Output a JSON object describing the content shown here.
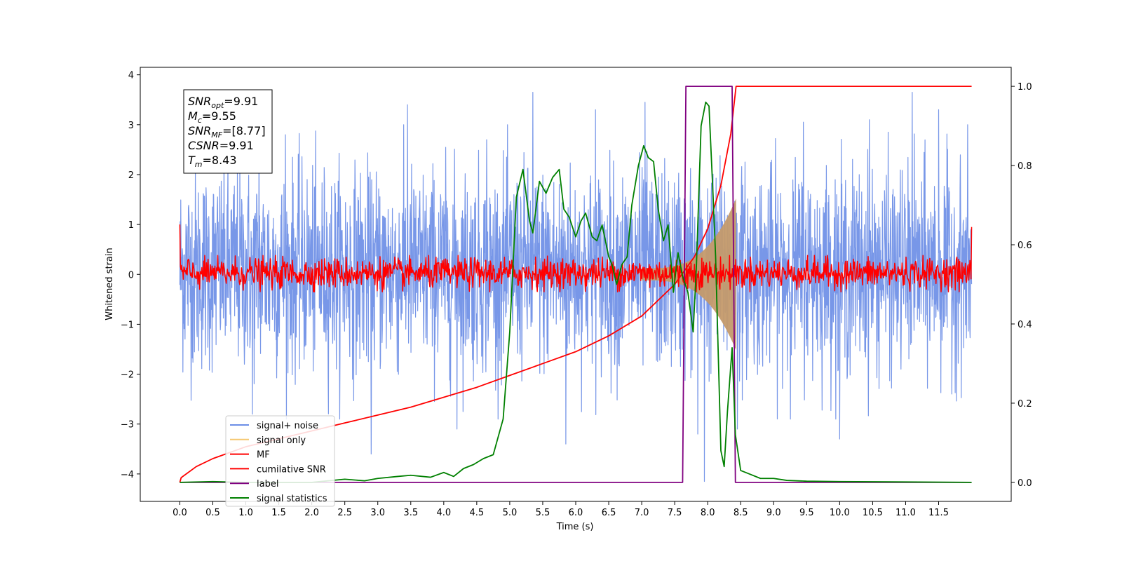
{
  "chart_data": {
    "type": "line",
    "xlabel": "Time (s)",
    "ylabel": "Whitened strain",
    "xlim": [
      -0.6,
      12.6
    ],
    "ylim": [
      -4.55,
      4.15
    ],
    "y2lim": [
      -0.048,
      1.048
    ],
    "x_ticks": [
      "0.0",
      "0.5",
      "1.0",
      "1.5",
      "2.0",
      "2.5",
      "3.0",
      "3.5",
      "4.0",
      "4.5",
      "5.0",
      "5.5",
      "6.0",
      "6.5",
      "7.0",
      "7.5",
      "8.0",
      "8.5",
      "9.0",
      "9.5",
      "10.0",
      "10.5",
      "11.0",
      "11.5"
    ],
    "y_ticks": [
      "4",
      "3",
      "2",
      "1",
      "0",
      "−1",
      "−2",
      "−3",
      "−4"
    ],
    "y2_ticks": [
      "1.0",
      "0.8",
      "0.6",
      "0.4",
      "0.2",
      "0.0"
    ],
    "grid": false,
    "legend_position": "lower-left",
    "annotation": [
      {
        "base": "SNR",
        "sub": "opt",
        "value": "=9.91"
      },
      {
        "base": "M",
        "sub": "c",
        "value": "=9.55"
      },
      {
        "base": "SNR",
        "sub": "MF",
        "value": "=[8.77]"
      },
      {
        "base": "CSNR",
        "sub": "",
        "value": "=9.91"
      },
      {
        "base": "T",
        "sub": "m",
        "value": "=8.43"
      }
    ],
    "series": [
      {
        "name": "signal+ noise",
        "color": "#6c8ee6",
        "axis": "left",
        "kind": "noise",
        "x_range": [
          0.0,
          12.0
        ],
        "typical_range": [
          -2.0,
          2.2
        ],
        "extremes": [
          {
            "x": 1.1,
            "y": -2.8
          },
          {
            "x": 1.2,
            "y": 2.9
          },
          {
            "x": 1.6,
            "y": 2.8
          },
          {
            "x": 2.9,
            "y": -3.6
          },
          {
            "x": 3.45,
            "y": 3.4
          },
          {
            "x": 4.2,
            "y": -3.1
          },
          {
            "x": 4.65,
            "y": 2.7
          },
          {
            "x": 5.35,
            "y": 3.65
          },
          {
            "x": 5.85,
            "y": -3.4
          },
          {
            "x": 6.3,
            "y": 3.3
          },
          {
            "x": 7.05,
            "y": 3.45
          },
          {
            "x": 7.85,
            "y": -3.2
          },
          {
            "x": 7.95,
            "y": -4.15
          },
          {
            "x": 8.45,
            "y": -3.1
          },
          {
            "x": 9.45,
            "y": 3.05
          },
          {
            "x": 10.0,
            "y": -3.3
          },
          {
            "x": 10.45,
            "y": 3.1
          },
          {
            "x": 11.1,
            "y": 3.65
          },
          {
            "x": 11.5,
            "y": 3.3
          }
        ]
      },
      {
        "name": "signal only",
        "color": "#f5c870",
        "axis": "left",
        "kind": "chirp",
        "x_range": [
          7.0,
          8.43
        ],
        "peak_amplitude": 1.4
      },
      {
        "name": "MF",
        "color": "#ff0000",
        "axis": "left",
        "kind": "noise",
        "x_range": [
          0.0,
          12.0
        ],
        "typical_range": [
          -0.25,
          0.3
        ],
        "edge_values": [
          1.0,
          0.95
        ]
      },
      {
        "name": "cumilative SNR",
        "color": "#ff0000",
        "axis": "right",
        "x": [
          0.0,
          0.02,
          0.25,
          0.5,
          1.0,
          1.5,
          2.0,
          2.5,
          3.0,
          3.5,
          4.0,
          4.5,
          5.0,
          5.5,
          6.0,
          6.5,
          7.0,
          7.5,
          7.8,
          8.0,
          8.2,
          8.35,
          8.43,
          12.0
        ],
        "values": [
          0.0,
          0.012,
          0.04,
          0.06,
          0.09,
          0.11,
          0.13,
          0.15,
          0.17,
          0.19,
          0.215,
          0.24,
          0.27,
          0.3,
          0.33,
          0.37,
          0.42,
          0.5,
          0.57,
          0.64,
          0.75,
          0.88,
          1.0,
          1.0
        ]
      },
      {
        "name": "label",
        "color": "#800080",
        "axis": "right",
        "x": [
          0.0,
          7.62,
          7.67,
          8.37,
          8.42,
          12.0
        ],
        "values": [
          0.0,
          0.0,
          1.0,
          1.0,
          0.0,
          0.0
        ]
      },
      {
        "name": "signal statistics",
        "color": "#008000",
        "axis": "right",
        "x": [
          0.0,
          0.5,
          1.0,
          1.5,
          2.0,
          2.5,
          2.8,
          3.0,
          3.3,
          3.5,
          3.8,
          4.0,
          4.15,
          4.3,
          4.45,
          4.6,
          4.75,
          4.9,
          5.0,
          5.1,
          5.2,
          5.3,
          5.35,
          5.45,
          5.55,
          5.65,
          5.75,
          5.82,
          5.9,
          6.0,
          6.08,
          6.15,
          6.25,
          6.32,
          6.4,
          6.5,
          6.55,
          6.62,
          6.7,
          6.78,
          6.85,
          6.95,
          7.03,
          7.1,
          7.18,
          7.25,
          7.33,
          7.4,
          7.48,
          7.55,
          7.62,
          7.7,
          7.78,
          7.83,
          7.9,
          7.97,
          8.02,
          8.08,
          8.12,
          8.2,
          8.25,
          8.3,
          8.37,
          8.42,
          8.5,
          8.65,
          8.8,
          9.0,
          9.2,
          9.5,
          10.0,
          11.0,
          12.0
        ],
        "values": [
          0.0,
          0.002,
          0.0,
          0.0,
          0.0,
          0.008,
          0.004,
          0.01,
          0.015,
          0.018,
          0.013,
          0.025,
          0.015,
          0.035,
          0.045,
          0.06,
          0.07,
          0.16,
          0.38,
          0.72,
          0.79,
          0.66,
          0.63,
          0.76,
          0.73,
          0.77,
          0.79,
          0.69,
          0.67,
          0.62,
          0.66,
          0.68,
          0.62,
          0.61,
          0.65,
          0.57,
          0.55,
          0.5,
          0.55,
          0.57,
          0.7,
          0.8,
          0.85,
          0.82,
          0.81,
          0.69,
          0.61,
          0.65,
          0.48,
          0.58,
          0.52,
          0.48,
          0.38,
          0.55,
          0.9,
          0.96,
          0.95,
          0.73,
          0.57,
          0.08,
          0.04,
          0.18,
          0.34,
          0.12,
          0.03,
          0.02,
          0.01,
          0.01,
          0.005,
          0.003,
          0.002,
          0.001,
          0.0
        ]
      }
    ]
  }
}
